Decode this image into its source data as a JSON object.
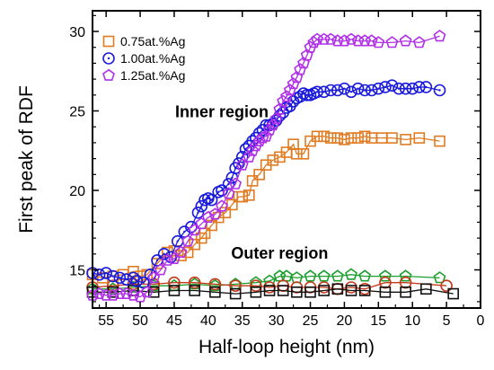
{
  "chart_data": {
    "type": "scatter",
    "title": "",
    "xlabel": "Half-loop height (nm)",
    "ylabel": "First peak of RDF",
    "xlim": [
      57,
      0
    ],
    "ylim": [
      12.6,
      31.3
    ],
    "x_ticks": [
      55,
      50,
      45,
      40,
      35,
      30,
      25,
      20,
      15,
      10,
      5,
      0
    ],
    "y_ticks": [
      15,
      20,
      25,
      30
    ],
    "x_inverted": true,
    "grid": false,
    "legend_position": "top-left",
    "annotations": [
      {
        "text": "Inner region",
        "x": 38,
        "y": 24.6
      },
      {
        "text": "Outer region",
        "x": 29.5,
        "y": 15.7
      }
    ],
    "series": [
      {
        "name": "0.75at.%Ag",
        "color": "#e07b22",
        "marker": "square",
        "x": [
          57,
          55.5,
          54,
          52.5,
          51,
          50,
          49,
          47.5,
          46,
          45,
          44,
          43,
          42,
          41,
          40.5,
          39.5,
          38.5,
          37.5,
          36.5,
          35.5,
          35,
          34,
          33.5,
          32.5,
          31.5,
          30.5,
          29.5,
          28.5,
          27.5,
          27,
          26,
          25,
          24,
          23,
          22,
          21,
          20,
          19,
          18,
          17,
          16,
          14.5,
          13,
          11,
          9,
          6
        ],
        "y": [
          14.7,
          14.5,
          14.6,
          14.7,
          14.9,
          14.6,
          14.7,
          15.4,
          16.1,
          16.2,
          15.9,
          16.1,
          16.6,
          17.0,
          17.3,
          17.8,
          18.3,
          18.6,
          19.1,
          19.6,
          19.6,
          19.7,
          20.6,
          21.0,
          21.6,
          21.9,
          22.1,
          22.4,
          22.9,
          22.3,
          22.3,
          23.1,
          23.4,
          23.4,
          23.3,
          23.3,
          23.2,
          23.3,
          23.3,
          23.4,
          23.3,
          23.3,
          23.3,
          23.2,
          23.3,
          23.1
        ]
      },
      {
        "name": "1.00at.%Ag",
        "color": "#1a1adb",
        "marker": "circle-dot",
        "x": [
          57,
          56,
          55,
          54,
          53,
          52,
          51,
          50.5,
          49.5,
          48.5,
          47.5,
          46.5,
          45.5,
          44.5,
          43.5,
          42.5,
          41.5,
          41,
          40.5,
          40,
          39.5,
          38.5,
          38,
          37,
          36.5,
          36,
          35.5,
          35,
          34.5,
          34,
          33.5,
          33,
          32.5,
          32,
          31.5,
          31,
          30.5,
          30,
          29.5,
          29,
          28.5,
          28,
          27.5,
          27,
          26.5,
          26,
          25.5,
          25,
          24.5,
          24,
          23,
          22,
          21,
          20,
          19,
          18,
          17,
          16,
          15,
          14,
          13,
          12,
          11,
          10,
          9,
          8,
          6
        ],
        "y": [
          14.8,
          14.7,
          14.8,
          14.6,
          14.5,
          14.4,
          14.5,
          14.3,
          14.2,
          14.7,
          15.6,
          16.0,
          15.8,
          16.8,
          17.4,
          17.7,
          18.6,
          19.0,
          19.4,
          19.5,
          19.4,
          19.9,
          20.0,
          20.4,
          20.8,
          21.4,
          21.7,
          22.1,
          22.6,
          22.8,
          23.1,
          23.3,
          23.6,
          23.8,
          24.1,
          24.1,
          24.2,
          24.4,
          24.7,
          24.9,
          25.2,
          25.3,
          25.6,
          25.8,
          25.9,
          26.1,
          26.0,
          26.0,
          26.1,
          26.2,
          26.2,
          26.3,
          26.3,
          26.4,
          26.2,
          26.4,
          26.3,
          26.3,
          26.4,
          26.5,
          26.6,
          26.4,
          26.4,
          26.4,
          26.5,
          26.5,
          26.3
        ]
      },
      {
        "name": "1.25at.%Ag",
        "color": "#b030e8",
        "marker": "pentagon",
        "x": [
          57,
          56,
          55,
          54,
          53,
          52,
          51,
          50,
          49,
          48,
          47,
          46,
          45,
          44,
          43,
          42,
          41,
          40,
          39,
          38,
          37,
          36,
          35,
          34,
          33.5,
          33,
          32.5,
          32,
          31.5,
          31,
          30.5,
          30,
          29.5,
          29,
          28.5,
          28,
          27.5,
          27,
          26.5,
          26,
          25.5,
          25,
          24.5,
          24,
          23,
          22,
          21,
          20,
          19,
          18,
          17,
          16,
          15,
          13,
          11,
          9,
          6
        ],
        "y": [
          13.4,
          13.5,
          13.4,
          13.4,
          13.5,
          13.5,
          13.4,
          13.3,
          13.6,
          14.5,
          15.0,
          15.6,
          15.7,
          16.1,
          16.8,
          17.5,
          17.9,
          18.3,
          18.5,
          19.0,
          19.8,
          20.4,
          21.6,
          22.1,
          22.5,
          22.8,
          23.1,
          23.3,
          23.4,
          23.8,
          24.1,
          24.5,
          25.1,
          25.6,
          25.9,
          26.3,
          26.7,
          27.1,
          27.6,
          28.0,
          28.5,
          29.0,
          29.3,
          29.5,
          29.5,
          29.5,
          29.4,
          29.4,
          29.5,
          29.4,
          29.4,
          29.4,
          29.3,
          29.3,
          29.4,
          29.3,
          29.7
        ]
      },
      {
        "name": "",
        "color": "#1e9e2e",
        "marker": "pentagon",
        "x": [
          57,
          54,
          51,
          48,
          45,
          42,
          39,
          36,
          33,
          31,
          29.5,
          28.5,
          27,
          25,
          23,
          21,
          19,
          17,
          14,
          11,
          6
        ],
        "y": [
          13.8,
          13.8,
          13.9,
          14.0,
          14.0,
          14.1,
          14.0,
          14.1,
          14.2,
          14.3,
          14.6,
          14.6,
          14.5,
          14.6,
          14.6,
          14.6,
          14.7,
          14.6,
          14.6,
          14.6,
          14.5
        ]
      },
      {
        "name": "",
        "color": "#c43a1c",
        "marker": "circle",
        "x": [
          57,
          54,
          51,
          48,
          45,
          42,
          39,
          36,
          33,
          31,
          29,
          27,
          25,
          23,
          21,
          19,
          17,
          14,
          11,
          5
        ],
        "y": [
          13.9,
          14.0,
          14.1,
          14.1,
          14.2,
          14.2,
          14.1,
          14.0,
          14.0,
          13.9,
          14.0,
          13.9,
          13.9,
          13.9,
          13.8,
          13.9,
          13.8,
          14.2,
          14.2,
          14.0
        ]
      },
      {
        "name": "",
        "color": "#111111",
        "marker": "square",
        "x": [
          57,
          54,
          51,
          48,
          45,
          42,
          39,
          36,
          33,
          31,
          29,
          27,
          25,
          23,
          21,
          19,
          17,
          14,
          11,
          8,
          4
        ],
        "y": [
          13.6,
          13.6,
          13.7,
          13.6,
          13.7,
          13.7,
          13.6,
          13.5,
          13.6,
          13.7,
          13.7,
          13.6,
          13.6,
          13.7,
          13.8,
          13.7,
          13.7,
          13.6,
          13.6,
          13.8,
          13.5
        ]
      }
    ]
  }
}
